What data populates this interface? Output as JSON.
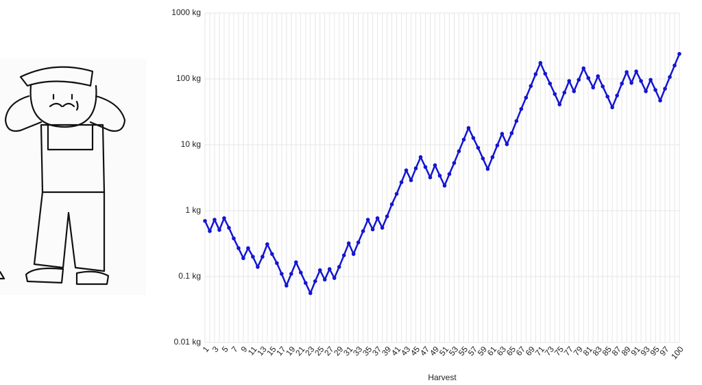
{
  "chart_data": {
    "type": "line",
    "xlabel": "Harvest",
    "color": "#1414d2",
    "yscale": "log",
    "grid": true,
    "x": [
      1,
      2,
      3,
      4,
      5,
      6,
      7,
      8,
      9,
      10,
      11,
      12,
      13,
      14,
      15,
      16,
      17,
      18,
      19,
      20,
      21,
      22,
      23,
      24,
      25,
      26,
      27,
      28,
      29,
      30,
      31,
      32,
      33,
      34,
      35,
      36,
      37,
      38,
      39,
      40,
      41,
      42,
      43,
      44,
      45,
      46,
      47,
      48,
      49,
      50,
      51,
      52,
      53,
      54,
      55,
      56,
      57,
      58,
      59,
      60,
      61,
      62,
      63,
      64,
      65,
      66,
      67,
      68,
      69,
      70,
      71,
      72,
      73,
      74,
      75,
      76,
      77,
      78,
      79,
      80,
      81,
      82,
      83,
      84,
      85,
      86,
      87,
      88,
      89,
      90,
      91,
      92,
      93,
      94,
      95,
      96,
      97,
      98,
      99,
      100
    ],
    "values": [
      0.7,
      0.49,
      0.73,
      0.51,
      0.77,
      0.55,
      0.38,
      0.27,
      0.19,
      0.27,
      0.2,
      0.14,
      0.2,
      0.31,
      0.22,
      0.16,
      0.11,
      0.073,
      0.11,
      0.165,
      0.115,
      0.08,
      0.056,
      0.085,
      0.125,
      0.09,
      0.13,
      0.095,
      0.14,
      0.21,
      0.32,
      0.22,
      0.33,
      0.49,
      0.73,
      0.52,
      0.77,
      0.55,
      0.82,
      1.25,
      1.8,
      2.7,
      4.1,
      2.9,
      4.4,
      6.5,
      4.6,
      3.2,
      4.9,
      3.4,
      2.4,
      3.6,
      5.3,
      8,
      12,
      18,
      12.7,
      9,
      6.2,
      4.3,
      6.5,
      9.8,
      14.7,
      10.2,
      15,
      23,
      35,
      52,
      78,
      118,
      175,
      120,
      85,
      59,
      41,
      62,
      93,
      65,
      97,
      145,
      103,
      74,
      110,
      77,
      54,
      37,
      56,
      85,
      127,
      87,
      130,
      93,
      65,
      97,
      68,
      47,
      71,
      107,
      160,
      240
    ],
    "xlim": [
      1,
      100
    ],
    "xticks": [
      1,
      3,
      5,
      7,
      9,
      11,
      13,
      15,
      17,
      19,
      21,
      23,
      25,
      27,
      29,
      31,
      33,
      35,
      37,
      39,
      41,
      43,
      45,
      47,
      49,
      51,
      53,
      55,
      57,
      59,
      61,
      63,
      65,
      67,
      69,
      71,
      73,
      75,
      77,
      79,
      81,
      83,
      85,
      87,
      89,
      91,
      93,
      95,
      97,
      100
    ],
    "ylim": [
      0.01,
      1000
    ],
    "yticks": [
      {
        "value": 0.01,
        "label": "0.01 kg"
      },
      {
        "value": 0.1,
        "label": "0.1 kg"
      },
      {
        "value": 1,
        "label": "1 kg"
      },
      {
        "value": 10,
        "label": "10 kg"
      },
      {
        "value": 100,
        "label": "100 kg"
      },
      {
        "value": 1000,
        "label": "1000 kg"
      }
    ]
  }
}
